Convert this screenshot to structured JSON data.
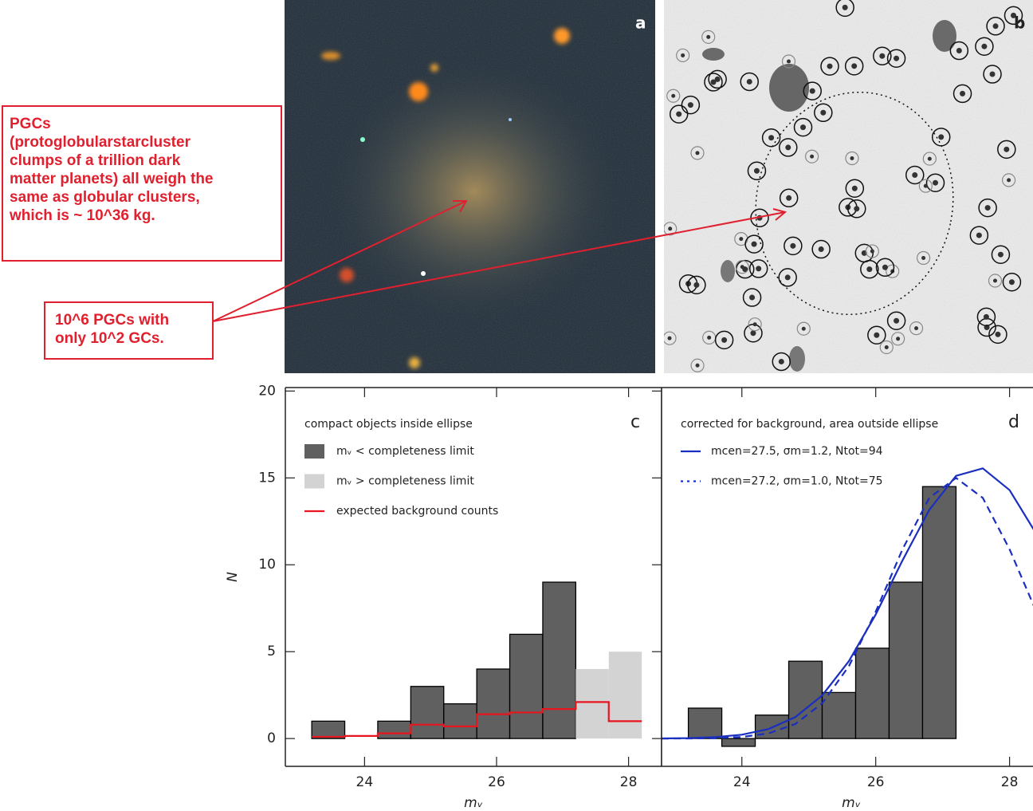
{
  "annotations": {
    "box_lines": [
      "PGCs",
      "(protoglobularstarcluster",
      "clumps of a trillion dark",
      "matter planets) all weigh the",
      "same as globular clusters,",
      "which is ~ 10^36 kg."
    ],
    "arrow_lines": [
      "10^6 PGCs with",
      "only 10^2 GCs."
    ]
  },
  "panel_labels": [
    "a",
    "b"
  ],
  "chart_data": [
    {
      "type": "histogram",
      "panel_label": "c",
      "legend_title": "compact objects inside ellipse",
      "xlabel": "mᵥ",
      "ylabel": "N",
      "bins": [
        23.2,
        23.7,
        24.2,
        24.7,
        25.2,
        25.7,
        26.2,
        26.7,
        27.2,
        27.7,
        28.2
      ],
      "xlim": [
        22.8,
        28.5
      ],
      "xticks": [
        24,
        26,
        28
      ],
      "ylim": [
        -1.6,
        20.2
      ],
      "yticks": [
        0,
        5,
        10,
        15,
        20
      ],
      "series": [
        {
          "name": "mᵥ < completeness limit",
          "color": "#606060",
          "edgecolor": "#000000",
          "values": [
            1,
            0,
            1,
            3,
            2,
            4,
            6,
            9,
            0,
            0
          ]
        },
        {
          "name": "mᵥ > completeness limit",
          "color": "#d3d3d3",
          "values": [
            0,
            0,
            0,
            0,
            0,
            0,
            0,
            0,
            4,
            5
          ]
        },
        {
          "name": "expected background counts",
          "color": "#e8141e",
          "style": "step",
          "values": [
            0.1,
            0.15,
            0.3,
            0.8,
            0.7,
            1.4,
            1.5,
            1.7,
            2.1,
            1.0
          ]
        }
      ]
    },
    {
      "type": "histogram",
      "panel_label": "d",
      "legend_title": "corrected for background, area outside ellipse",
      "xlabel": "mᵥ",
      "bins": [
        23.2,
        23.7,
        24.2,
        24.7,
        25.2,
        25.7,
        26.2,
        26.7,
        27.2
      ],
      "values": [
        1.75,
        -0.45,
        1.35,
        4.45,
        2.65,
        5.2,
        9.0,
        14.5
      ],
      "color": "#606060",
      "edgecolor": "#000000",
      "xlim": [
        22.8,
        28.35
      ],
      "xticks": [
        24,
        26,
        28
      ],
      "ylim": [
        -1.6,
        20.2
      ],
      "series": [
        {
          "name": "mcen=27.5, σm=1.2, Ntot=94",
          "color": "#1a2fbf",
          "style": "solid",
          "x": [
            22.8,
            23.2,
            23.6,
            24.0,
            24.4,
            24.8,
            25.2,
            25.6,
            26.0,
            26.4,
            26.8,
            27.2,
            27.6,
            28.0,
            28.4
          ],
          "values": [
            0.007,
            0.025,
            0.08,
            0.22,
            0.55,
            1.24,
            2.48,
            4.46,
            7.14,
            10.25,
            13.16,
            15.12,
            15.55,
            14.3,
            11.78
          ]
        },
        {
          "name": "mcen=27.2, σm=1.0, Ntot=75",
          "color": "#1a2fbf",
          "style": "dashed",
          "x": [
            22.8,
            23.2,
            23.6,
            24.0,
            24.4,
            24.8,
            25.2,
            25.6,
            26.0,
            26.4,
            26.8,
            27.2,
            27.6,
            28.0,
            28.4
          ],
          "values": [
            0.001,
            0.005,
            0.023,
            0.09,
            0.3,
            0.84,
            2.03,
            4.17,
            7.3,
            10.89,
            13.85,
            15.0,
            13.85,
            10.89,
            7.3
          ]
        }
      ]
    }
  ]
}
